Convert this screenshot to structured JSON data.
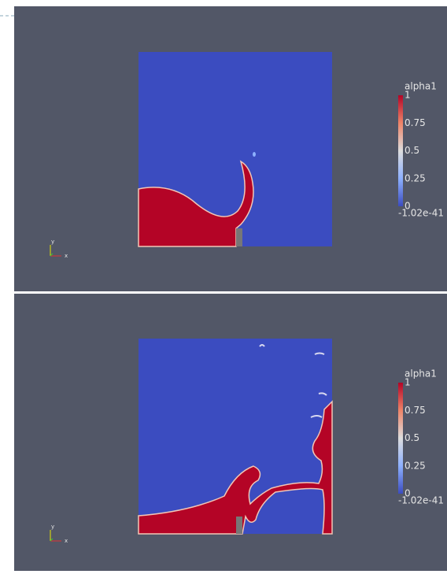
{
  "panels": [
    {
      "legend": {
        "title": "alpha1",
        "labels": [
          "1",
          "0.75",
          "0.5",
          "0.25",
          "0",
          "-1.02e-41"
        ]
      },
      "axes": {
        "y": "y",
        "x": "x"
      }
    },
    {
      "legend": {
        "title": "alpha1",
        "labels": [
          "1",
          "0.75",
          "0.5",
          "0.25",
          "0",
          "-1.02e-41"
        ]
      },
      "axes": {
        "y": "y",
        "x": "x"
      }
    }
  ]
}
